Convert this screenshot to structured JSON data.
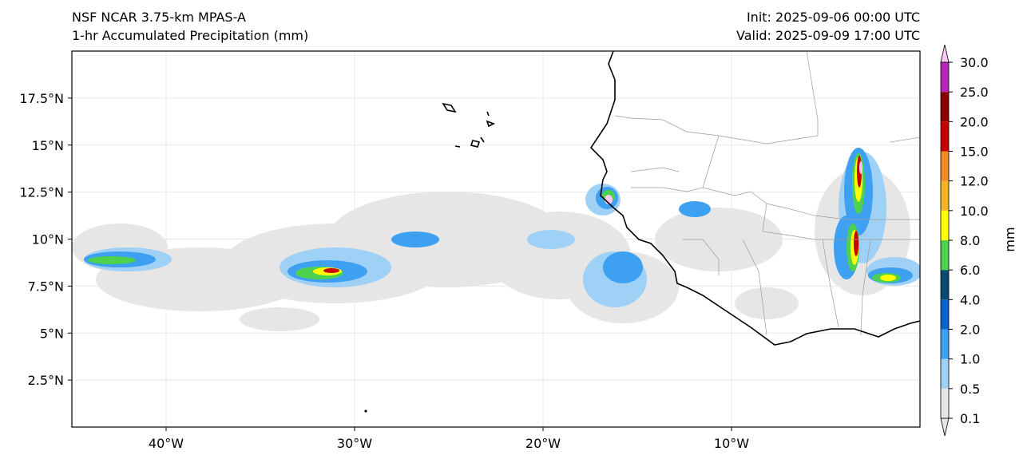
{
  "header": {
    "model": "NSF NCAR 3.75-km MPAS-A",
    "field": "1-hr Accumulated Precipitation (mm)",
    "init": "Init: 2025-09-06 00:00 UTC",
    "valid": "Valid: 2025-09-09 17:00 UTC"
  },
  "map": {
    "lon_range": [
      -45,
      0
    ],
    "lat_range": [
      0,
      20
    ],
    "lat_ticks": [
      "2.5°N",
      "5°N",
      "7.5°N",
      "10°N",
      "12.5°N",
      "15°N",
      "17.5°N"
    ],
    "lat_tick_values": [
      2.5,
      5,
      7.5,
      10,
      12.5,
      15,
      17.5
    ],
    "lon_ticks": [
      "40°W",
      "30°W",
      "20°W",
      "10°W"
    ],
    "lon_tick_values": [
      -40,
      -30,
      -20,
      -10
    ],
    "grid": true
  },
  "colorbar": {
    "unit": "mm",
    "levels": [
      "0.1",
      "0.5",
      "1.0",
      "2.0",
      "4.0",
      "6.0",
      "8.0",
      "10.0",
      "12.0",
      "15.0",
      "20.0",
      "25.0",
      "30.0"
    ],
    "colors": [
      "#e6e6e6",
      "#9fd0f5",
      "#3da0f0",
      "#0a64c8",
      "#0a4a6e",
      "#4cd24c",
      "#ffff00",
      "#f5b428",
      "#f08c28",
      "#c80000",
      "#8c0000",
      "#b428b4",
      "#ffc8f5"
    ],
    "extend": "both"
  }
}
